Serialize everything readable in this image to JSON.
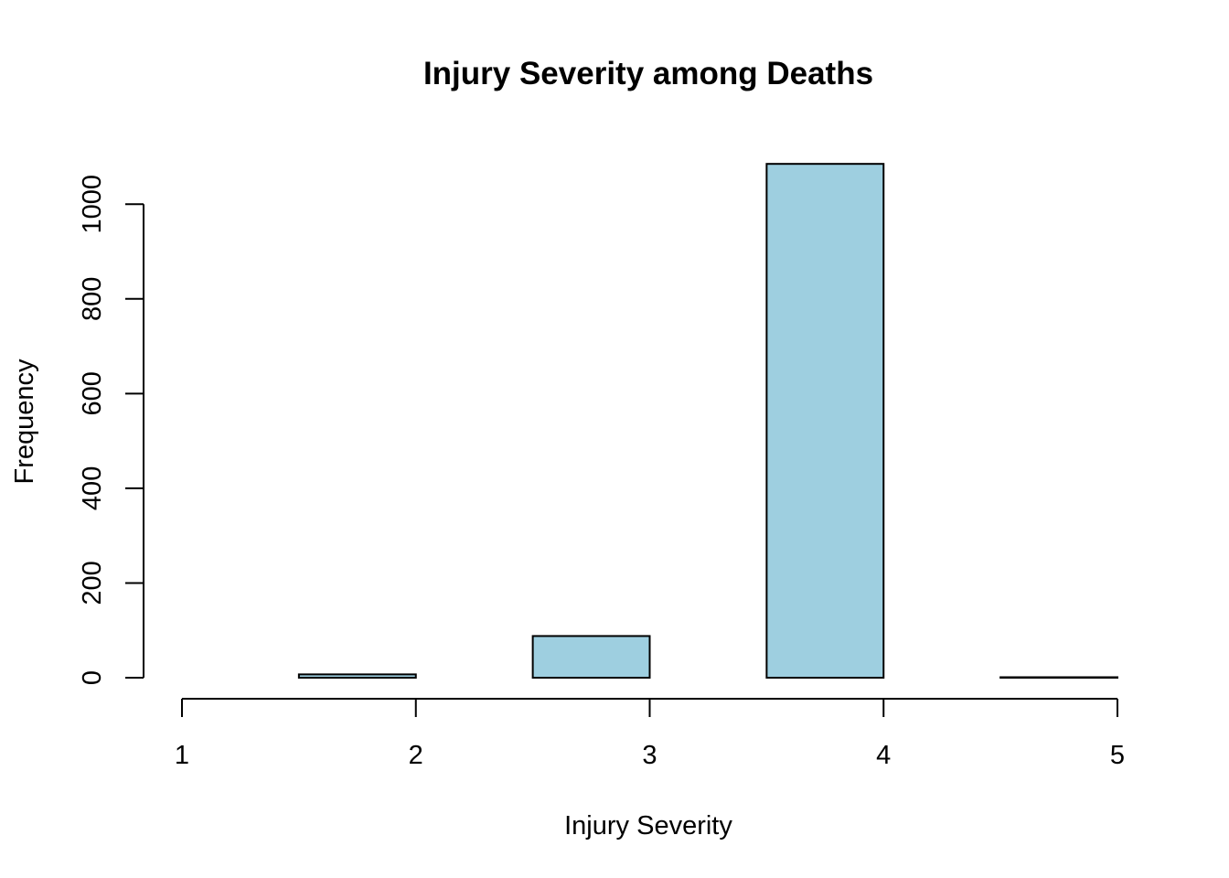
{
  "chart_data": {
    "type": "bar",
    "title": "Injury Severity among Deaths",
    "xlabel": "Injury Severity",
    "ylabel": "Frequency",
    "bins": [
      {
        "start": 1.0,
        "end": 1.5,
        "value": 0
      },
      {
        "start": 1.5,
        "end": 2.0,
        "value": 7
      },
      {
        "start": 2.0,
        "end": 2.5,
        "value": 0
      },
      {
        "start": 2.5,
        "end": 3.0,
        "value": 88
      },
      {
        "start": 3.0,
        "end": 3.5,
        "value": 0
      },
      {
        "start": 3.5,
        "end": 4.0,
        "value": 1085
      },
      {
        "start": 4.0,
        "end": 4.5,
        "value": 0
      },
      {
        "start": 4.5,
        "end": 5.0,
        "value": 1
      }
    ],
    "xlim": [
      1,
      5
    ],
    "ylim": [
      0,
      1085
    ],
    "xticks": [
      "1",
      "2",
      "3",
      "4",
      "5"
    ],
    "yticks": [
      "0",
      "200",
      "400",
      "600",
      "800",
      "1000"
    ],
    "bar_color": "#9ECFE0",
    "grid": false,
    "legend": "none"
  }
}
